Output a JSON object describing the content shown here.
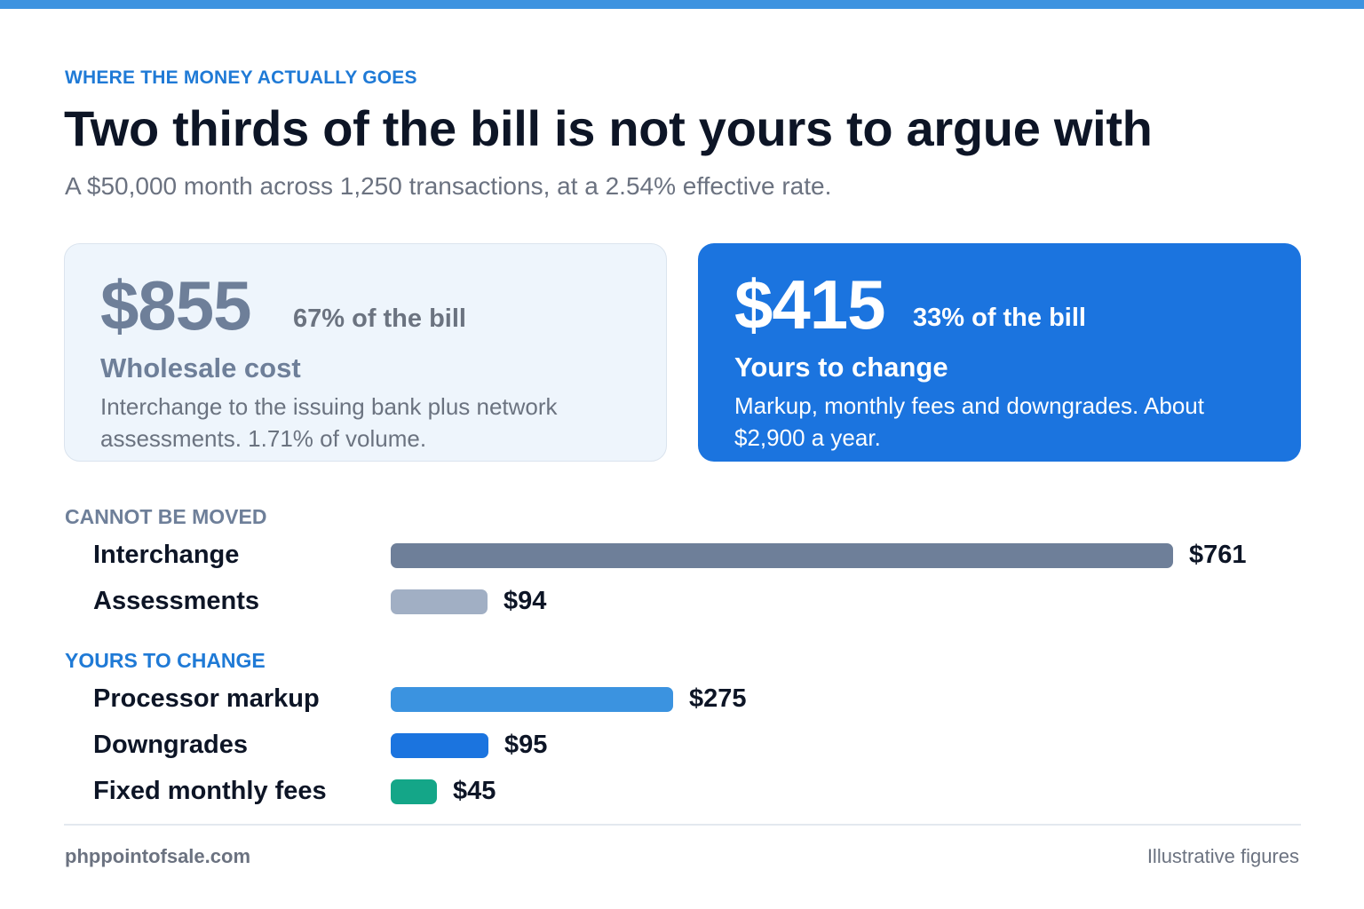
{
  "header": {
    "eyebrow": "WHERE THE MONEY ACTUALLY GOES",
    "title": "Two thirds of the bill is not yours to argue with",
    "subtitle": "A $50,000 month across 1,250 transactions, at a 2.54% effective rate."
  },
  "cards": {
    "wholesale": {
      "amount": "$855",
      "share": "67% of the bill",
      "label": "Wholesale cost",
      "description": "Interchange to the issuing bank plus network assessments. 1.71% of volume."
    },
    "changeable": {
      "amount": "$415",
      "share": "33% of the bill",
      "label": "Yours to change",
      "description": "Markup, monthly fees and downgrades. About $2,900 a year."
    }
  },
  "groups": {
    "fixed_title": "CANNOT BE MOVED",
    "change_title": "YOURS TO CHANGE"
  },
  "chart_data": {
    "type": "bar",
    "orientation": "horizontal",
    "grid": false,
    "xlim": [
      0,
      761
    ],
    "categories": [
      "Interchange",
      "Assessments",
      "Processor markup",
      "Downgrades",
      "Fixed monthly fees"
    ],
    "values": [
      761,
      94,
      275,
      95,
      45
    ],
    "value_labels": [
      "$761",
      "$94",
      "$275",
      "$95",
      "$45"
    ],
    "groups": [
      "CANNOT BE MOVED",
      "CANNOT BE MOVED",
      "YOURS TO CHANGE",
      "YOURS TO CHANGE",
      "YOURS TO CHANGE"
    ],
    "colors": [
      "#6e7f99",
      "#a1afc4",
      "#3b93e0",
      "#1b74df",
      "#14a688"
    ]
  },
  "colors": {
    "accent": "#1f7ad6",
    "topbar": "#3d93e0",
    "card_blue": "#1b74df",
    "card_light": "#eef5fc"
  },
  "footer": {
    "site": "phppointofsale.com",
    "note": "Illustrative figures"
  }
}
